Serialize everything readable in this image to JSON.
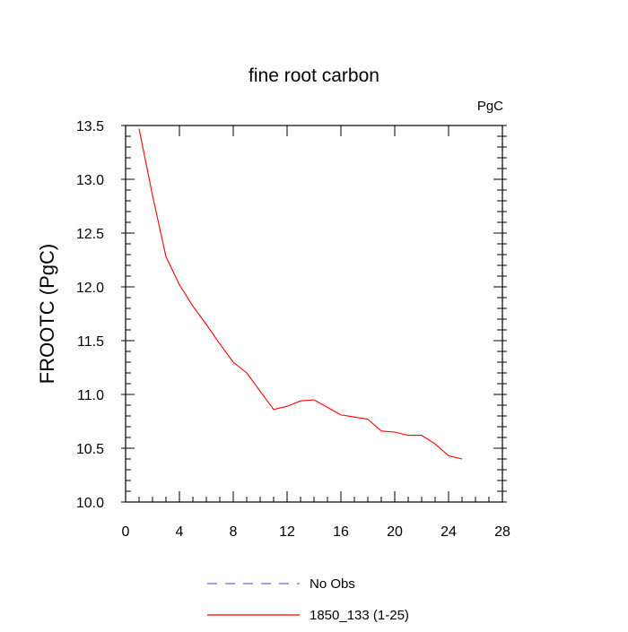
{
  "chart_data": {
    "type": "line",
    "title": "fine root carbon",
    "units_label": "PgC",
    "xlabel": "",
    "ylabel": "FROOTC  (PgC)",
    "xlim": [
      0,
      28
    ],
    "ylim": [
      10.0,
      13.5
    ],
    "xticks": [
      0,
      4,
      8,
      12,
      16,
      20,
      24,
      28
    ],
    "xtick_labels": [
      "0",
      "4",
      "8",
      "12",
      "16",
      "20",
      "24",
      "28"
    ],
    "yticks": [
      10.0,
      10.5,
      11.0,
      11.5,
      12.0,
      12.5,
      13.0,
      13.5
    ],
    "ytick_labels": [
      "10.0",
      "10.5",
      "11.0",
      "11.5",
      "12.0",
      "12.5",
      "13.0",
      "13.5"
    ],
    "grid": false,
    "legend_position": "bottom",
    "series": [
      {
        "name": "1850_133 (1-25)",
        "color": "#ff0000",
        "style": "solid",
        "x": [
          1,
          2,
          3,
          4,
          5,
          6,
          7,
          8,
          9,
          10,
          11,
          12,
          13,
          14,
          15,
          16,
          17,
          18,
          19,
          20,
          21,
          22,
          23,
          24,
          25
        ],
        "values": [
          13.47,
          12.85,
          12.28,
          12.02,
          11.82,
          11.65,
          11.47,
          11.3,
          11.2,
          11.03,
          10.86,
          10.89,
          10.94,
          10.95,
          10.88,
          10.81,
          10.79,
          10.77,
          10.66,
          10.65,
          10.62,
          10.62,
          10.54,
          10.43,
          10.4
        ]
      }
    ],
    "legend": [
      {
        "label": "No Obs",
        "color": "#6b6bd6",
        "style": "dashed"
      },
      {
        "label": "1850_133 (1-25)",
        "color": "#ff0000",
        "style": "solid"
      }
    ]
  }
}
